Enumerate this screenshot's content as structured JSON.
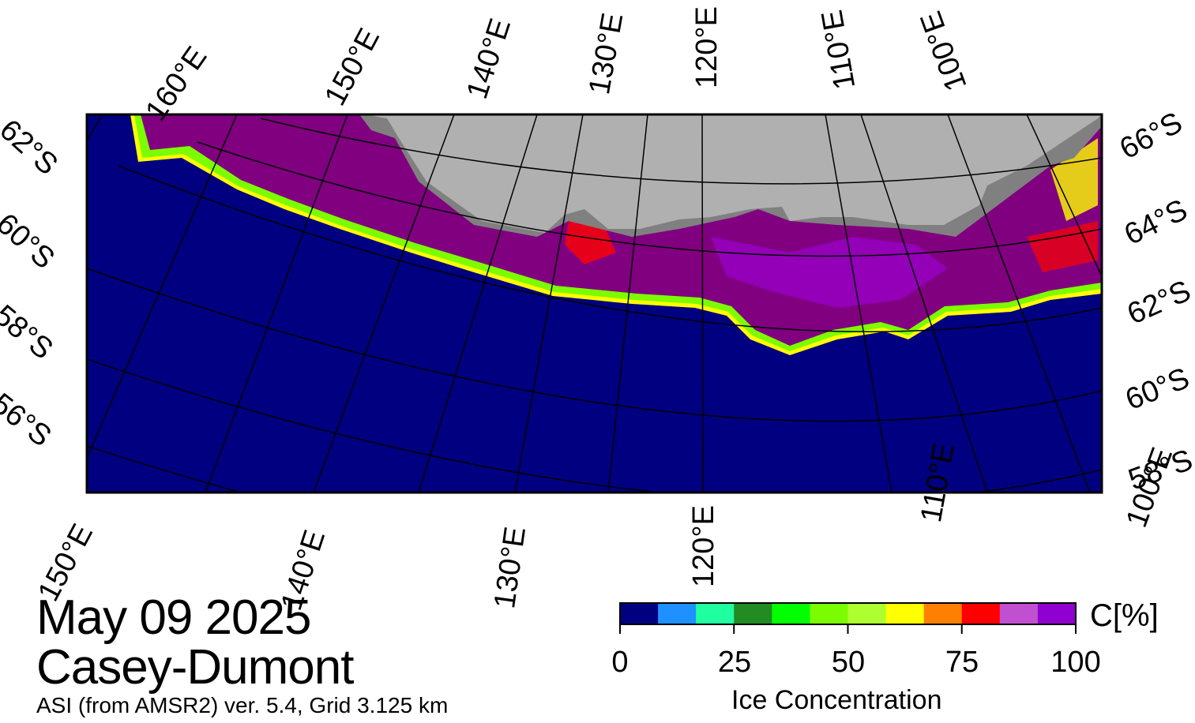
{
  "title": {
    "date": "May 09 2025",
    "region": "Casey-Dumont",
    "product": "ASI (from AMSR2) ver. 5.4,  Grid 3.125 km"
  },
  "map": {
    "projection": "polar stereographic (south)",
    "colors": {
      "ocean": "#000080",
      "land_ice": "#b0b0b0",
      "land_dark": "#808080",
      "ice_high": "#800080",
      "ice_mid": "#9b00d0",
      "ice_edge_red": "#ff0000",
      "ice_edge_yellow": "#ffff00",
      "ice_edge_green": "#7cfc00",
      "graticule": "#000000",
      "frame": "#000000"
    },
    "labels": {
      "top_lon": [
        "160°E",
        "150°E",
        "140°E",
        "130°E",
        "120°E",
        "110°E",
        "100°E"
      ],
      "bottom_lon": [
        "150°E",
        "140°E",
        "130°E",
        "120°E",
        "110°E",
        "100°E"
      ],
      "left_lat": [
        "62°S",
        "60°S",
        "58°S",
        "56°S"
      ],
      "right_lat": [
        "66°S",
        "64°S",
        "62°S",
        "60°S",
        "58°S"
      ]
    }
  },
  "colorbar": {
    "unit": "C[%]",
    "title": "Ice Concentration",
    "ticks": [
      "0",
      "25",
      "50",
      "75",
      "100"
    ],
    "colors": [
      "#000080",
      "#1e90ff",
      "#20ffa0",
      "#228b22",
      "#00ff00",
      "#7cfc00",
      "#adff2f",
      "#ffff00",
      "#ff8000",
      "#ff0000",
      "#c050d0",
      "#9000d0"
    ]
  }
}
